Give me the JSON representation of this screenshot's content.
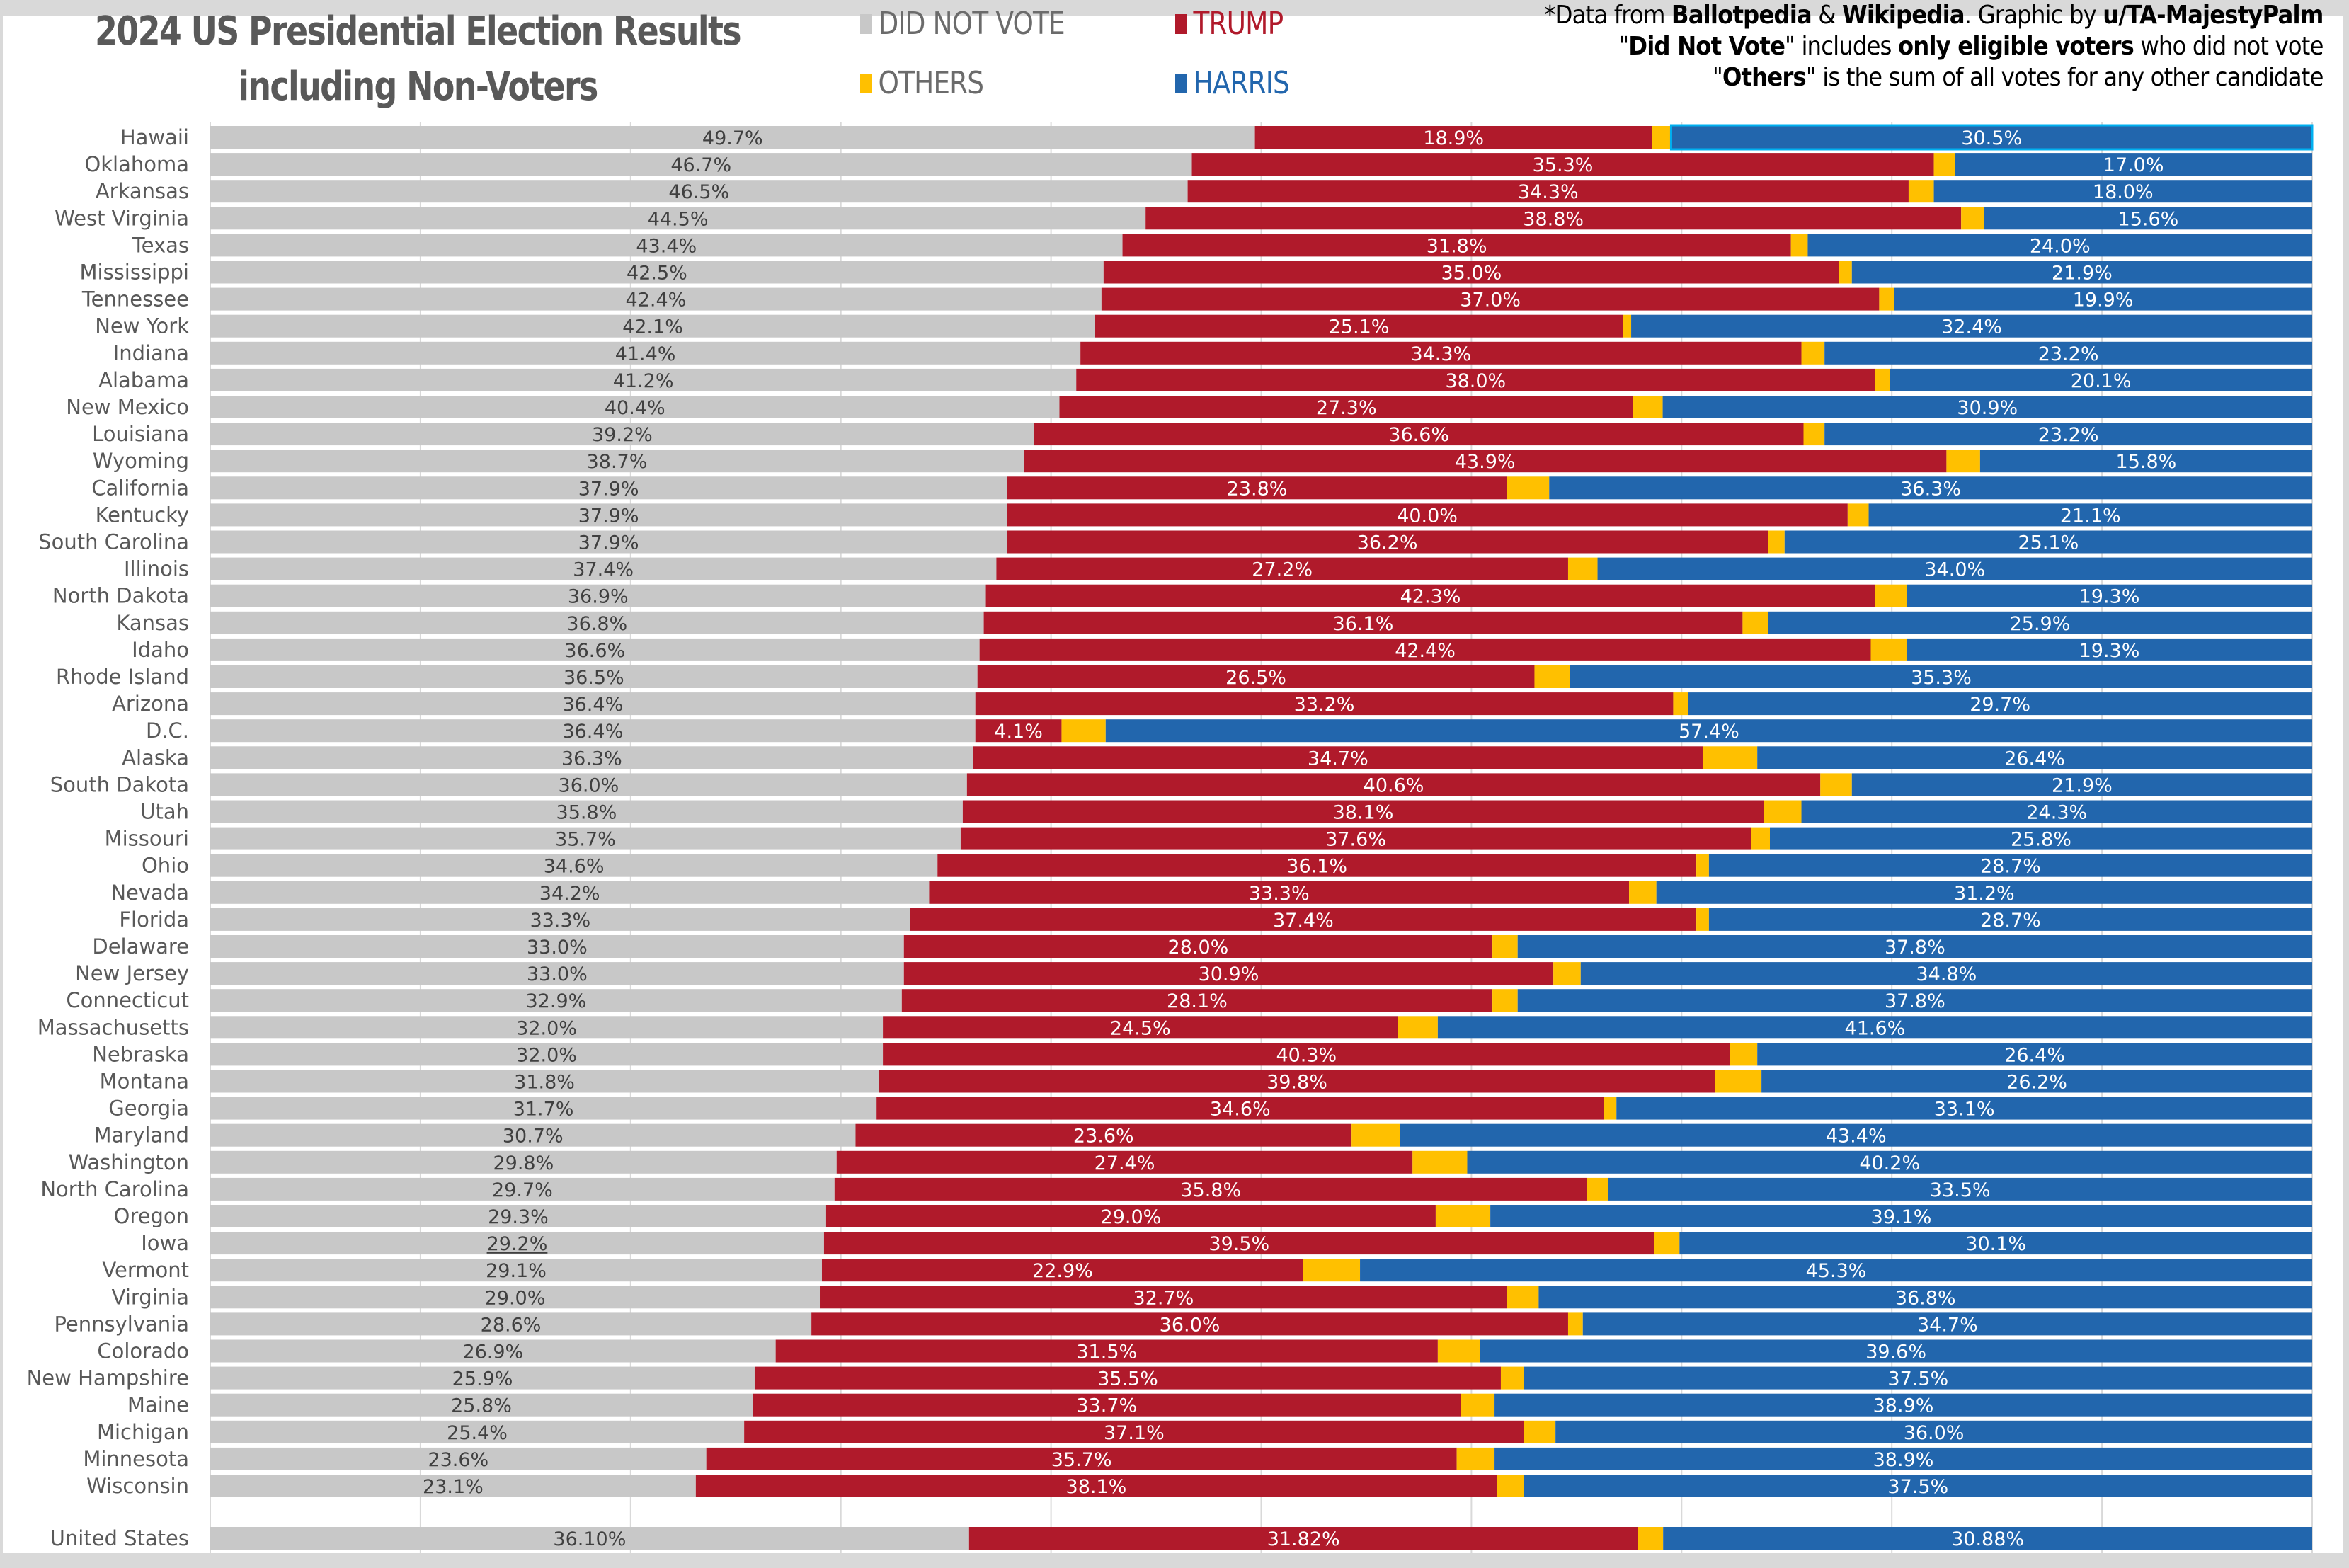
{
  "title": {
    "line1": "2024 US Presidential Election Results",
    "line2": "including Non-Voters"
  },
  "legend": [
    {
      "key": "did_not_vote",
      "label": "DID NOT VOTE",
      "color": "#c8c8c8",
      "text_color": "#6b6b6b"
    },
    {
      "key": "trump",
      "label": "TRUMP",
      "color": "#b01a2b",
      "text_color": "#b01a2b"
    },
    {
      "key": "others",
      "label": "OTHERS",
      "color": "#ffc000",
      "text_color": "#6b6b6b"
    },
    {
      "key": "harris",
      "label": "HARRIS",
      "color": "#2266ad",
      "text_color": "#2266ad"
    }
  ],
  "notes": {
    "line1": [
      {
        "t": "*Data from ",
        "b": false
      },
      {
        "t": "Ballotpedia",
        "b": true
      },
      {
        "t": " & ",
        "b": false
      },
      {
        "t": "Wikipedia",
        "b": true
      },
      {
        "t": ". Graphic by ",
        "b": false
      },
      {
        "t": "u/TA-MajestyPalm",
        "b": true
      }
    ],
    "line2": [
      {
        "t": "\"",
        "b": false
      },
      {
        "t": "Did Not Vote",
        "b": true
      },
      {
        "t": "\" includes ",
        "b": false
      },
      {
        "t": "only eligible voters",
        "b": true
      },
      {
        "t": " who did not vote",
        "b": false
      }
    ],
    "line3": [
      {
        "t": "\"",
        "b": false
      },
      {
        "t": "Others",
        "b": true
      },
      {
        "t": "\" is the sum of all votes for any other candidate",
        "b": false
      }
    ]
  },
  "chart_data": {
    "type": "bar",
    "orientation": "horizontal",
    "stacked": true,
    "normalized": true,
    "title": "2024 US Presidential Election Results including Non-Voters",
    "xlabel": "",
    "ylabel": "",
    "xlim": [
      0,
      100
    ],
    "grid": true,
    "legend_position": "top",
    "series_order": [
      "did_not_vote",
      "trump",
      "others",
      "harris"
    ],
    "categories": [
      "Hawaii",
      "Oklahoma",
      "Arkansas",
      "West Virginia",
      "Texas",
      "Mississippi",
      "Tennessee",
      "New York",
      "Indiana",
      "Alabama",
      "New Mexico",
      "Louisiana",
      "Wyoming",
      "California",
      "Kentucky",
      "South Carolina",
      "Illinois",
      "North Dakota",
      "Kansas",
      "Idaho",
      "Rhode Island",
      "Arizona",
      "D.C.",
      "Alaska",
      "South Dakota",
      "Utah",
      "Missouri",
      "Ohio",
      "Nevada",
      "Florida",
      "Delaware",
      "New Jersey",
      "Connecticut",
      "Massachusetts",
      "Nebraska",
      "Montana",
      "Georgia",
      "Maryland",
      "Washington",
      "North Carolina",
      "Oregon",
      "Iowa",
      "Vermont",
      "Virginia",
      "Pennsylvania",
      "Colorado",
      "New Hampshire",
      "Maine",
      "Michigan",
      "Minnesota",
      "Wisconsin"
    ],
    "series": [
      {
        "name": "DID NOT VOTE",
        "key": "did_not_vote",
        "values": [
          49.7,
          46.7,
          46.5,
          44.5,
          43.4,
          42.5,
          42.4,
          42.1,
          41.4,
          41.2,
          40.4,
          39.2,
          38.7,
          37.9,
          37.9,
          37.9,
          37.4,
          36.9,
          36.8,
          36.6,
          36.5,
          36.4,
          36.4,
          36.3,
          36.0,
          35.8,
          35.7,
          34.6,
          34.2,
          33.3,
          33.0,
          33.0,
          32.9,
          32.0,
          32.0,
          31.8,
          31.7,
          30.7,
          29.8,
          29.7,
          29.3,
          29.2,
          29.1,
          29.0,
          28.6,
          26.9,
          25.9,
          25.8,
          25.4,
          23.6,
          23.1
        ]
      },
      {
        "name": "TRUMP",
        "key": "trump",
        "values": [
          18.9,
          35.3,
          34.3,
          38.8,
          31.8,
          35.0,
          37.0,
          25.1,
          34.3,
          38.0,
          27.3,
          36.6,
          43.9,
          23.8,
          40.0,
          36.2,
          27.2,
          42.3,
          36.1,
          42.4,
          26.5,
          33.2,
          4.1,
          34.7,
          40.6,
          38.1,
          37.6,
          36.1,
          33.3,
          37.4,
          28.0,
          30.9,
          28.1,
          24.5,
          40.3,
          39.8,
          34.6,
          23.6,
          27.4,
          35.8,
          29.0,
          39.5,
          22.9,
          32.7,
          36.0,
          31.5,
          35.5,
          33.7,
          37.1,
          35.7,
          38.1
        ]
      },
      {
        "name": "OTHERS",
        "key": "others",
        "values": [
          0.9,
          1.0,
          1.2,
          1.1,
          0.8,
          0.6,
          0.7,
          0.4,
          1.1,
          0.7,
          1.4,
          1.0,
          1.6,
          2.0,
          1.0,
          0.8,
          1.4,
          1.5,
          1.2,
          1.7,
          1.7,
          0.7,
          2.1,
          2.6,
          1.5,
          1.8,
          0.9,
          0.6,
          1.3,
          0.6,
          1.2,
          1.3,
          1.2,
          1.9,
          1.3,
          2.2,
          0.6,
          2.3,
          2.6,
          1.0,
          2.6,
          1.2,
          2.7,
          1.5,
          0.7,
          2.0,
          1.1,
          1.6,
          1.5,
          1.8,
          1.3
        ]
      },
      {
        "name": "HARRIS",
        "key": "harris",
        "values": [
          30.5,
          17.0,
          18.0,
          15.6,
          24.0,
          21.9,
          19.9,
          32.4,
          23.2,
          20.1,
          30.9,
          23.2,
          15.8,
          36.3,
          21.1,
          25.1,
          34.0,
          19.3,
          25.9,
          19.3,
          35.3,
          29.7,
          57.4,
          26.4,
          21.9,
          24.3,
          25.8,
          28.7,
          31.2,
          28.7,
          37.8,
          34.8,
          37.8,
          41.6,
          26.4,
          26.2,
          33.1,
          43.4,
          40.2,
          33.5,
          39.1,
          30.1,
          45.3,
          36.8,
          34.7,
          39.6,
          37.5,
          38.9,
          36.0,
          38.9,
          37.5
        ]
      }
    ],
    "labels": {
      "did_not_vote": [
        "49.7%",
        "46.7%",
        "46.5%",
        "44.5%",
        "43.4%",
        "42.5%",
        "42.4%",
        "42.1%",
        "41.4%",
        "41.2%",
        "40.4%",
        "39.2%",
        "38.7%",
        "37.9%",
        "37.9%",
        "37.9%",
        "37.4%",
        "36.9%",
        "36.8%",
        "36.6%",
        "36.5%",
        "36.4%",
        "36.4%",
        "36.3%",
        "36.0%",
        "35.8%",
        "35.7%",
        "34.6%",
        "34.2%",
        "33.3%",
        "33.0%",
        "33.0%",
        "32.9%",
        "32.0%",
        "32.0%",
        "31.8%",
        "31.7%",
        "30.7%",
        "29.8%",
        "29.7%",
        "29.3%",
        "29.2%",
        "29.1%",
        "29.0%",
        "28.6%",
        "26.9%",
        "25.9%",
        "25.8%",
        "25.4%",
        "23.6%",
        "23.1%"
      ],
      "trump": [
        "18.9%",
        "35.3%",
        "34.3%",
        "38.8%",
        "31.8%",
        "35.0%",
        "37.0%",
        "25.1%",
        "34.3%",
        "38.0%",
        "27.3%",
        "36.6%",
        "43.9%",
        "23.8%",
        "40.0%",
        "36.2%",
        "27.2%",
        "42.3%",
        "36.1%",
        "42.4%",
        "26.5%",
        "33.2%",
        "4.1%",
        "34.7%",
        "40.6%",
        "38.1%",
        "37.6%",
        "36.1%",
        "33.3%",
        "37.4%",
        "28.0%",
        "30.9%",
        "28.1%",
        "24.5%",
        "40.3%",
        "39.8%",
        "34.6%",
        "23.6%",
        "27.4%",
        "35.8%",
        "29.0%",
        "39.5%",
        "22.9%",
        "32.7%",
        "36.0%",
        "31.5%",
        "35.5%",
        "33.7%",
        "37.1%",
        "35.7%",
        "38.1%"
      ],
      "harris": [
        "30.5%",
        "17.0%",
        "18.0%",
        "15.6%",
        "24.0%",
        "21.9%",
        "19.9%",
        "32.4%",
        "23.2%",
        "20.1%",
        "30.9%",
        "23.2%",
        "15.8%",
        "36.3%",
        "21.1%",
        "25.1%",
        "34.0%",
        "19.3%",
        "25.9%",
        "19.3%",
        "35.3%",
        "29.7%",
        "57.4%",
        "26.4%",
        "21.9%",
        "24.3%",
        "25.8%",
        "28.7%",
        "31.2%",
        "28.7%",
        "37.8%",
        "34.8%",
        "37.8%",
        "41.6%",
        "26.4%",
        "26.2%",
        "33.1%",
        "43.4%",
        "40.2%",
        "33.5%",
        "39.1%",
        "30.1%",
        "45.3%",
        "36.8%",
        "34.7%",
        "39.6%",
        "37.5%",
        "38.9%",
        "36.0%",
        "38.9%",
        "37.5%"
      ]
    },
    "highlighted_category": "Hawaii",
    "underlined_labels": [
      {
        "category": "Iowa",
        "series": "did_not_vote"
      }
    ],
    "total": {
      "category": "United States",
      "did_not_vote": 36.1,
      "trump": 31.82,
      "others": 1.2,
      "harris": 30.88,
      "labels": {
        "did_not_vote": "36.10%",
        "trump": "31.82%",
        "harris": "30.88%"
      }
    }
  }
}
